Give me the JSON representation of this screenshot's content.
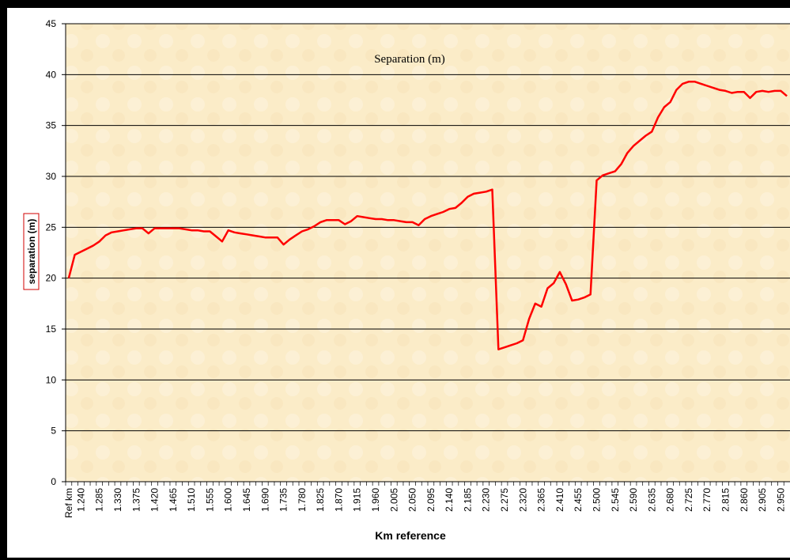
{
  "chart_data": {
    "type": "line",
    "title": "Separation (m)",
    "y_label": "separation (m)",
    "x_label": "Km reference",
    "categories": [
      "Ref km",
      null,
      "1.240",
      null,
      null,
      "1.285",
      null,
      null,
      "1.330",
      null,
      null,
      "1.375",
      null,
      null,
      "1.420",
      null,
      null,
      "1.465",
      null,
      null,
      "1.510",
      null,
      null,
      "1.555",
      null,
      null,
      "1.600",
      null,
      null,
      "1.645",
      null,
      null,
      "1.690",
      null,
      null,
      "1.735",
      null,
      null,
      "1.780",
      null,
      null,
      "1.825",
      null,
      null,
      "1.870",
      null,
      null,
      "1.915",
      null,
      null,
      "1.960",
      null,
      null,
      "2.005",
      null,
      null,
      "2.050",
      null,
      null,
      "2.095",
      null,
      null,
      "2.140",
      null,
      null,
      "2.185",
      null,
      null,
      "2.230",
      null,
      null,
      "2.275",
      null,
      null,
      "2.320",
      null,
      null,
      "2.365",
      null,
      null,
      "2.410",
      null,
      null,
      "2.455",
      null,
      null,
      "2.500",
      null,
      null,
      "2.545",
      null,
      null,
      "2.590",
      null,
      null,
      "2.635",
      null,
      null,
      "2.680",
      null,
      null,
      "2.725",
      null,
      null,
      "2.770",
      null,
      null,
      "2.815",
      null,
      null,
      "2.860",
      null,
      null,
      "2.905",
      null,
      null,
      "2.950",
      null
    ],
    "series": [
      {
        "color": "#ff0000",
        "values": [
          20.0,
          22.3,
          22.6,
          22.9,
          23.2,
          23.6,
          24.2,
          24.5,
          24.6,
          24.7,
          24.8,
          24.9,
          24.9,
          24.4,
          24.9,
          24.9,
          24.9,
          24.9,
          24.9,
          24.8,
          24.7,
          24.7,
          24.6,
          24.6,
          24.1,
          23.6,
          24.7,
          24.5,
          24.4,
          24.3,
          24.2,
          24.1,
          24.0,
          24.0,
          24.0,
          23.3,
          23.8,
          24.2,
          24.6,
          24.8,
          25.1,
          25.5,
          25.7,
          25.7,
          25.7,
          25.3,
          25.6,
          26.1,
          26.0,
          25.9,
          25.8,
          25.8,
          25.7,
          25.7,
          25.6,
          25.5,
          25.5,
          25.2,
          25.8,
          26.1,
          26.3,
          26.5,
          26.8,
          26.9,
          27.4,
          28.0,
          28.3,
          28.4,
          28.5,
          28.7,
          13.0,
          13.2,
          13.4,
          13.6,
          13.9,
          16.0,
          17.5,
          17.2,
          19.0,
          19.5,
          20.6,
          19.4,
          17.8,
          17.9,
          18.1,
          18.4,
          29.6,
          30.1,
          30.3,
          30.5,
          31.2,
          32.3,
          33.0,
          33.5,
          34.0,
          34.4,
          35.8,
          36.8,
          37.3,
          38.5,
          39.1,
          39.3,
          39.3,
          39.1,
          38.9,
          38.7,
          38.5,
          38.4,
          38.2,
          38.3,
          38.3,
          37.7,
          38.3,
          38.4,
          38.3,
          38.4,
          38.4,
          37.9
        ]
      }
    ],
    "ylim": [
      0,
      45
    ],
    "yticks": [
      0,
      5,
      10,
      15,
      20,
      25,
      30,
      35,
      40,
      45
    ],
    "grid": true
  }
}
